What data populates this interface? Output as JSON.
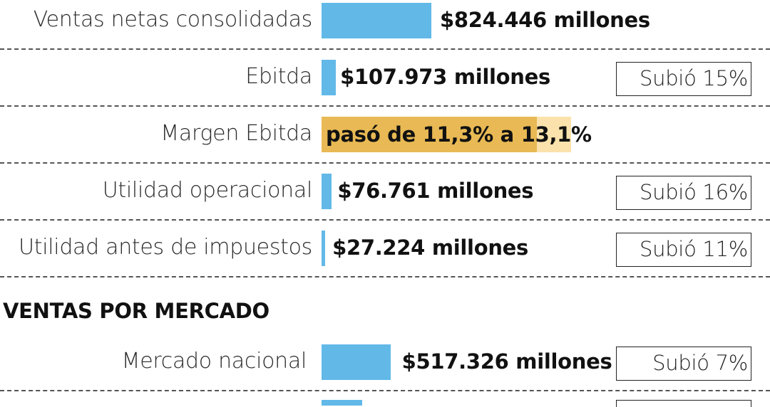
{
  "chart_data": {
    "type": "bar",
    "rows": [
      {
        "label": "Ventas netas consolidadas",
        "value": 824446,
        "value_text": "$824.446 millones",
        "change": ""
      },
      {
        "label": "Ebitda",
        "value": 107973,
        "value_text": "$107.973 millones",
        "change": "Subió 15%"
      },
      {
        "label": "Margen Ebitda",
        "from": 11.3,
        "to": 13.1,
        "value_text": "pasó de 11,3% a 13,1%"
      },
      {
        "label": "Utilidad operacional",
        "value": 76761,
        "value_text": "$76.761 millones",
        "change": "Subió 16%"
      },
      {
        "label": "Utilidad antes de impuestos",
        "value": 27224,
        "value_text": "$27.224 millones",
        "change": "Subió 11%"
      }
    ],
    "section_title": "VENTAS POR MERCADO",
    "market_rows": [
      {
        "label": "Mercado nacional",
        "value": 517326,
        "value_text": "$517.326 millones",
        "change": "Subió 7%"
      }
    ],
    "bar_color": "#62b9e8",
    "margin_colors": {
      "from": "#e8b954",
      "to": "#fbe2ac"
    }
  }
}
